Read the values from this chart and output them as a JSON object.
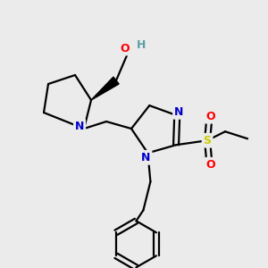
{
  "bg_color": "#ebebeb",
  "atom_colors": {
    "N": "#0000cc",
    "O": "#ff0000",
    "S": "#cccc00",
    "C": "#000000",
    "H": "#5f9ea0"
  },
  "bond_color": "#000000",
  "bond_width": 1.6,
  "figsize": [
    3.0,
    3.0
  ],
  "dpi": 100
}
